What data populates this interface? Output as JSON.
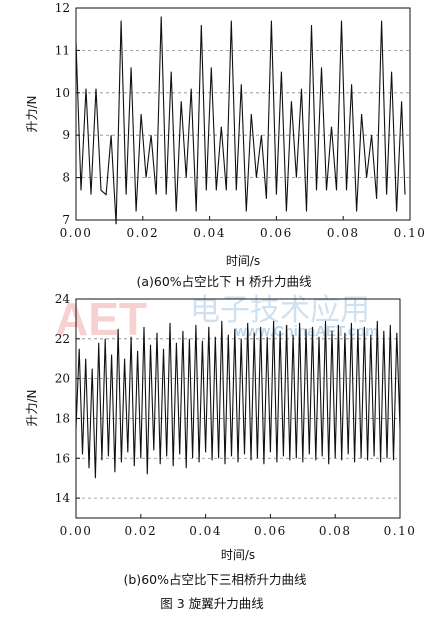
{
  "figure_caption": "图 3   旋翼升力曲线",
  "watermark": {
    "logo": "AET",
    "cn": "电子技术应用",
    "url": "www.ChinaAET.com"
  },
  "chart_data": [
    {
      "type": "line",
      "caption": "(a)60%占空比下 H 桥升力曲线",
      "xlabel": "时间/s",
      "ylabel": "升力/N",
      "xlim": [
        0.0,
        0.1
      ],
      "ylim": [
        7,
        12
      ],
      "xticks": [
        "0.00",
        "0.02",
        "0.04",
        "0.06",
        "0.08",
        "0.10"
      ],
      "yticks": [
        "7",
        "8",
        "9",
        "10",
        "11",
        "12"
      ],
      "grid": "horizontal dashed",
      "series": [
        {
          "x": [
            0.0,
            0.0015,
            0.003,
            0.0045,
            0.006,
            0.0075,
            0.009,
            0.0105,
            0.012,
            0.0135,
            0.015,
            0.0165,
            0.018,
            0.0195,
            0.021,
            0.0225,
            0.024,
            0.0255,
            0.027,
            0.0285,
            0.03,
            0.0315,
            0.033,
            0.0345,
            0.036,
            0.0375,
            0.039,
            0.0405,
            0.042,
            0.0435,
            0.045,
            0.0465,
            0.048,
            0.0495,
            0.051,
            0.0525,
            0.054,
            0.0555,
            0.057,
            0.0585,
            0.06,
            0.0615,
            0.063,
            0.0645,
            0.066,
            0.0675,
            0.069,
            0.0705,
            0.072,
            0.0735,
            0.075,
            0.0765,
            0.078,
            0.0795,
            0.081,
            0.0825,
            0.084,
            0.0855,
            0.087,
            0.0885,
            0.09,
            0.0915,
            0.093,
            0.0945,
            0.096,
            0.0975,
            0.0985
          ],
          "y": [
            11.2,
            7.7,
            10.1,
            7.6,
            10.1,
            7.7,
            7.6,
            9.0,
            6.9,
            11.7,
            7.6,
            10.6,
            7.2,
            9.5,
            8.0,
            9.0,
            7.6,
            11.8,
            7.6,
            10.5,
            7.2,
            9.8,
            8.0,
            10.1,
            7.2,
            11.6,
            7.7,
            10.6,
            7.7,
            9.2,
            7.7,
            11.7,
            7.7,
            10.2,
            7.2,
            9.5,
            8.0,
            9.0,
            7.5,
            11.7,
            7.6,
            10.5,
            7.2,
            9.8,
            8.0,
            10.1,
            7.2,
            11.6,
            7.7,
            10.6,
            7.7,
            9.2,
            7.7,
            11.7,
            7.7,
            10.2,
            7.2,
            9.5,
            8.0,
            9.0,
            7.5,
            11.7,
            7.6,
            10.5,
            7.2,
            9.8,
            7.6
          ]
        }
      ]
    },
    {
      "type": "line",
      "caption": "(b)60%占空比下三相桥升力曲线",
      "xlabel": "时间/s",
      "ylabel": "升力/N",
      "xlim": [
        0.0,
        0.1
      ],
      "ylim": [
        13,
        24
      ],
      "xticks": [
        "0.00",
        "0.02",
        "0.04",
        "0.06",
        "0.08",
        "0.10"
      ],
      "yticks": [
        "14",
        "16",
        "18",
        "20",
        "22",
        "24"
      ],
      "grid": "horizontal dashed",
      "series": [
        {
          "x": [
            0.0,
            0.001,
            0.002,
            0.003,
            0.004,
            0.005,
            0.006,
            0.007,
            0.008,
            0.009,
            0.01,
            0.011,
            0.012,
            0.013,
            0.014,
            0.015,
            0.016,
            0.017,
            0.018,
            0.019,
            0.02,
            0.021,
            0.022,
            0.023,
            0.024,
            0.025,
            0.026,
            0.027,
            0.028,
            0.029,
            0.03,
            0.031,
            0.032,
            0.033,
            0.034,
            0.035,
            0.036,
            0.037,
            0.038,
            0.039,
            0.04,
            0.041,
            0.042,
            0.043,
            0.044,
            0.045,
            0.046,
            0.047,
            0.048,
            0.049,
            0.05,
            0.051,
            0.052,
            0.053,
            0.054,
            0.055,
            0.056,
            0.057,
            0.058,
            0.059,
            0.06,
            0.061,
            0.062,
            0.063,
            0.064,
            0.065,
            0.066,
            0.067,
            0.068,
            0.069,
            0.07,
            0.071,
            0.072,
            0.073,
            0.074,
            0.075,
            0.076,
            0.077,
            0.078,
            0.079,
            0.08,
            0.081,
            0.082,
            0.083,
            0.084,
            0.085,
            0.086,
            0.087,
            0.088,
            0.089,
            0.09,
            0.091,
            0.092,
            0.093,
            0.094,
            0.095,
            0.096,
            0.097,
            0.098,
            0.099,
            0.1
          ],
          "y": [
            17.5,
            21.5,
            16.2,
            21.0,
            15.5,
            20.5,
            15.0,
            21.8,
            15.9,
            22.0,
            16.1,
            21.2,
            15.3,
            22.5,
            15.8,
            21.0,
            16.3,
            22.1,
            15.6,
            21.4,
            16.0,
            22.6,
            15.2,
            21.7,
            16.4,
            22.3,
            15.7,
            21.5,
            16.1,
            22.8,
            15.6,
            21.8,
            16.2,
            22.4,
            15.5,
            22.0,
            16.0,
            22.7,
            15.8,
            21.9,
            16.3,
            22.6,
            15.9,
            22.1,
            16.0,
            22.9,
            15.7,
            22.2,
            16.1,
            22.5,
            15.8,
            22.0,
            16.2,
            22.8,
            15.9,
            22.3,
            16.0,
            22.6,
            15.7,
            22.1,
            16.3,
            22.9,
            15.8,
            22.4,
            16.1,
            22.7,
            15.9,
            22.2,
            16.0,
            22.8,
            15.8,
            22.5,
            16.2,
            22.6,
            15.9,
            22.1,
            16.1,
            22.9,
            15.7,
            22.4,
            16.0,
            22.7,
            15.9,
            22.3,
            16.2,
            22.8,
            15.8,
            22.5,
            16.0,
            22.6,
            15.9,
            22.2,
            16.1,
            22.9,
            15.8,
            22.4,
            16.0,
            22.7,
            15.9,
            22.3,
            17.5
          ]
        }
      ]
    }
  ]
}
